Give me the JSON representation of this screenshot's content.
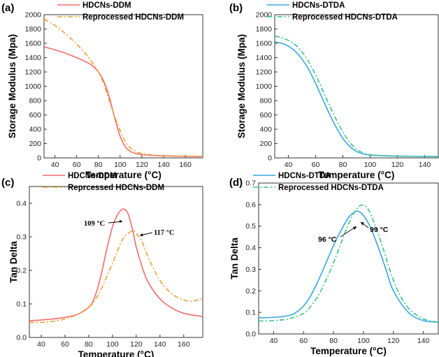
{
  "chart_data": [
    {
      "panel": "(a)",
      "type": "line",
      "xlabel": "Temperature (°C)",
      "ylabel": "Storage Modulus (Mpa)",
      "xlim": [
        30,
        176
      ],
      "ylim": [
        0,
        2000
      ],
      "xticks": [
        40,
        60,
        80,
        100,
        120,
        140,
        160
      ],
      "yticks": [
        0,
        200,
        400,
        600,
        800,
        1000,
        1200,
        1400,
        1600,
        1800,
        2000
      ],
      "legend_position": "top-right",
      "series": [
        {
          "name": "HDCNs-DDM",
          "color": "#f26b6b",
          "dash": "solid",
          "x": [
            30,
            40,
            50,
            60,
            70,
            75,
            80,
            85,
            90,
            95,
            100,
            105,
            110,
            115,
            120,
            130,
            140,
            160,
            176
          ],
          "y": [
            1550,
            1510,
            1460,
            1400,
            1330,
            1280,
            1200,
            1070,
            850,
            560,
            300,
            150,
            85,
            60,
            45,
            35,
            28,
            22,
            20
          ]
        },
        {
          "name": "Reprocessed HDCNs-DDM",
          "color": "#e8a23a",
          "dash": "dashdot",
          "x": [
            30,
            40,
            50,
            60,
            70,
            80,
            85,
            90,
            95,
            100,
            105,
            110,
            115,
            120,
            130,
            140,
            160,
            176
          ],
          "y": [
            1940,
            1850,
            1730,
            1590,
            1420,
            1200,
            1030,
            800,
            580,
            380,
            220,
            130,
            85,
            60,
            40,
            32,
            25,
            22
          ]
        }
      ]
    },
    {
      "panel": "(b)",
      "type": "line",
      "xlabel": "Temperature (°C)",
      "ylabel": "Storage Modulus (Mpa)",
      "xlim": [
        30,
        150
      ],
      "ylim": [
        0,
        2000
      ],
      "xticks": [
        40,
        60,
        80,
        100,
        120,
        140
      ],
      "yticks": [
        0,
        200,
        400,
        600,
        800,
        1000,
        1200,
        1400,
        1600,
        1800,
        2000
      ],
      "legend_position": "top-right",
      "series": [
        {
          "name": "HDCNs-DTDA",
          "color": "#3aa6e0",
          "dash": "solid",
          "x": [
            30,
            35,
            40,
            45,
            50,
            55,
            60,
            65,
            70,
            75,
            80,
            85,
            90,
            95,
            100,
            110,
            120,
            130,
            150
          ],
          "y": [
            1620,
            1600,
            1560,
            1490,
            1380,
            1230,
            1040,
            830,
            620,
            430,
            270,
            160,
            90,
            55,
            40,
            30,
            25,
            22,
            20
          ]
        },
        {
          "name": "Reprocessed HDCNs-DTDA",
          "color": "#3cc28a",
          "dash": "dashdot",
          "x": [
            30,
            35,
            40,
            45,
            50,
            55,
            60,
            65,
            70,
            75,
            80,
            85,
            90,
            95,
            100,
            110,
            120,
            130,
            150
          ],
          "y": [
            1700,
            1680,
            1640,
            1580,
            1480,
            1340,
            1160,
            950,
            740,
            540,
            360,
            220,
            120,
            70,
            45,
            32,
            27,
            23,
            20
          ]
        }
      ]
    },
    {
      "panel": "(c)",
      "type": "line",
      "xlabel": "Temperature (°C)",
      "ylabel": "Tan Delta",
      "xlim": [
        30,
        176
      ],
      "ylim": [
        0,
        0.45
      ],
      "xticks": [
        40,
        60,
        80,
        100,
        120,
        140,
        160
      ],
      "yticks": [
        0.0,
        0.1,
        0.2,
        0.3,
        0.4
      ],
      "legend_position": "top-right",
      "annotations": [
        "109 °C",
        "117 °C"
      ],
      "series": [
        {
          "name": "HDCNs-DDM",
          "color": "#f26b6b",
          "dash": "solid",
          "x": [
            30,
            40,
            50,
            60,
            70,
            80,
            85,
            90,
            95,
            100,
            105,
            109,
            113,
            117,
            120,
            125,
            130,
            140,
            150,
            160,
            176
          ],
          "y": [
            0.05,
            0.052,
            0.055,
            0.06,
            0.068,
            0.09,
            0.12,
            0.18,
            0.26,
            0.33,
            0.37,
            0.383,
            0.37,
            0.32,
            0.27,
            0.21,
            0.165,
            0.115,
            0.088,
            0.072,
            0.062
          ]
        },
        {
          "name": "Reprcessed HDCNs-DDM",
          "color": "#e8a23a",
          "dash": "dashdot",
          "x": [
            30,
            40,
            50,
            60,
            70,
            80,
            85,
            90,
            95,
            100,
            105,
            110,
            117,
            120,
            125,
            130,
            140,
            150,
            160,
            166,
            176
          ],
          "y": [
            0.045,
            0.045,
            0.048,
            0.055,
            0.068,
            0.09,
            0.11,
            0.14,
            0.18,
            0.22,
            0.265,
            0.3,
            0.318,
            0.31,
            0.285,
            0.24,
            0.17,
            0.13,
            0.112,
            0.108,
            0.115
          ]
        }
      ]
    },
    {
      "panel": "(d)",
      "type": "line",
      "xlabel": "Temperature (°C)",
      "ylabel": "Tan Delta",
      "xlim": [
        30,
        150
      ],
      "ylim": [
        0,
        0.7
      ],
      "xticks": [
        40,
        60,
        80,
        100,
        120,
        140
      ],
      "yticks": [
        0.0,
        0.1,
        0.2,
        0.3,
        0.4,
        0.5,
        0.6,
        0.7
      ],
      "legend_position": "top-right",
      "annotations": [
        "96 °C",
        "99 °C"
      ],
      "series": [
        {
          "name": "HDCNs-DTDA",
          "color": "#3aa6e0",
          "dash": "solid",
          "x": [
            30,
            40,
            50,
            55,
            60,
            65,
            70,
            75,
            80,
            85,
            90,
            93,
            96,
            100,
            105,
            110,
            115,
            120,
            130,
            140,
            150
          ],
          "y": [
            0.075,
            0.077,
            0.085,
            0.1,
            0.13,
            0.18,
            0.25,
            0.33,
            0.41,
            0.48,
            0.54,
            0.56,
            0.57,
            0.55,
            0.49,
            0.4,
            0.3,
            0.2,
            0.1,
            0.062,
            0.055
          ]
        },
        {
          "name": "Reprocessed HDCNs-DTDA",
          "color": "#3cc28a",
          "dash": "dashdot",
          "x": [
            30,
            40,
            50,
            60,
            65,
            70,
            75,
            80,
            85,
            90,
            95,
            99,
            103,
            108,
            113,
            118,
            123,
            130,
            140,
            150
          ],
          "y": [
            0.06,
            0.062,
            0.07,
            0.095,
            0.13,
            0.18,
            0.25,
            0.33,
            0.42,
            0.51,
            0.575,
            0.598,
            0.58,
            0.5,
            0.4,
            0.29,
            0.2,
            0.12,
            0.07,
            0.055
          ]
        }
      ]
    }
  ]
}
